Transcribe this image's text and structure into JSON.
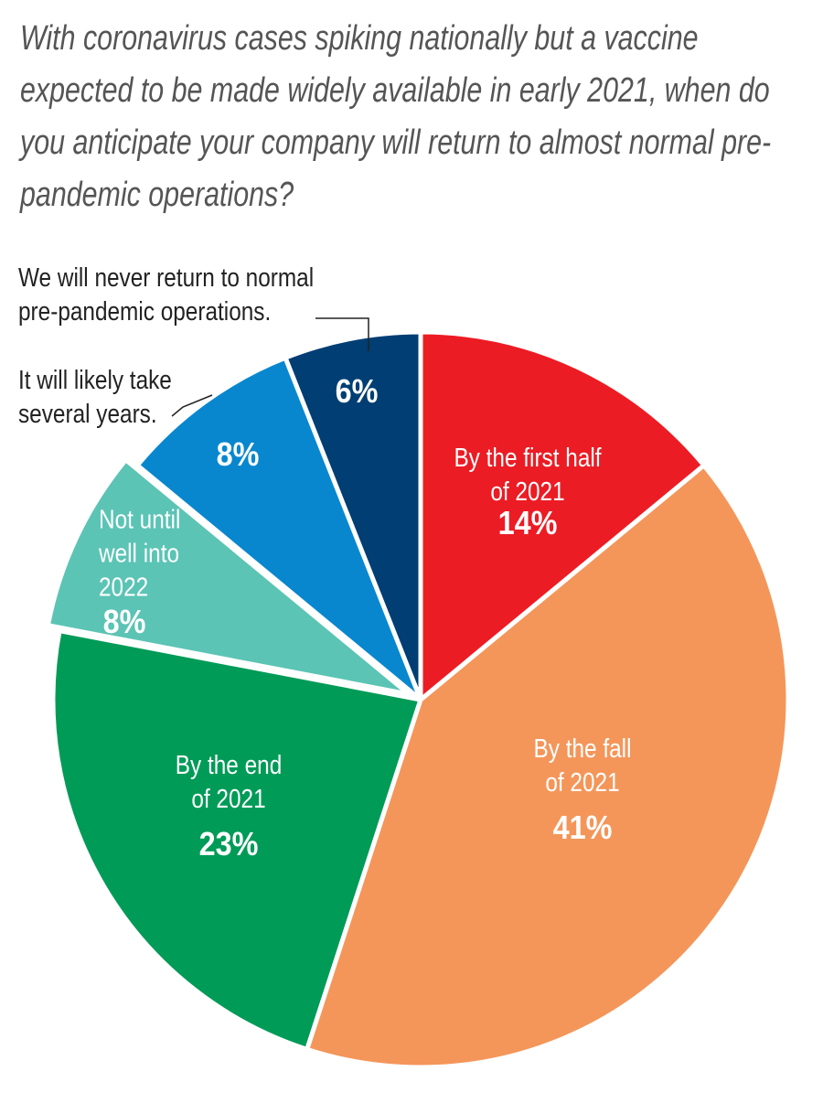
{
  "chart_data": {
    "type": "pie",
    "title": "With coronavirus cases spiking nationally but a vaccine expected to be made widely available in early 2021, when do you anticipate your company will return to almost normal pre-pandemic operations?",
    "categories": [
      "By the first half of 2021",
      "By the fall of 2021",
      "By the end of 2021",
      "Not until well into 2022",
      "It will likely take several years.",
      "We will never return to normal pre-pandemic operations."
    ],
    "values": [
      14,
      41,
      23,
      8,
      8,
      6
    ],
    "value_labels": [
      "14%",
      "41%",
      "23%",
      "8%",
      "8%",
      "6%"
    ],
    "colors": [
      "#ec1c24",
      "#f4965a",
      "#009b57",
      "#5bc4b5",
      "#0887cf",
      "#003e73"
    ]
  }
}
